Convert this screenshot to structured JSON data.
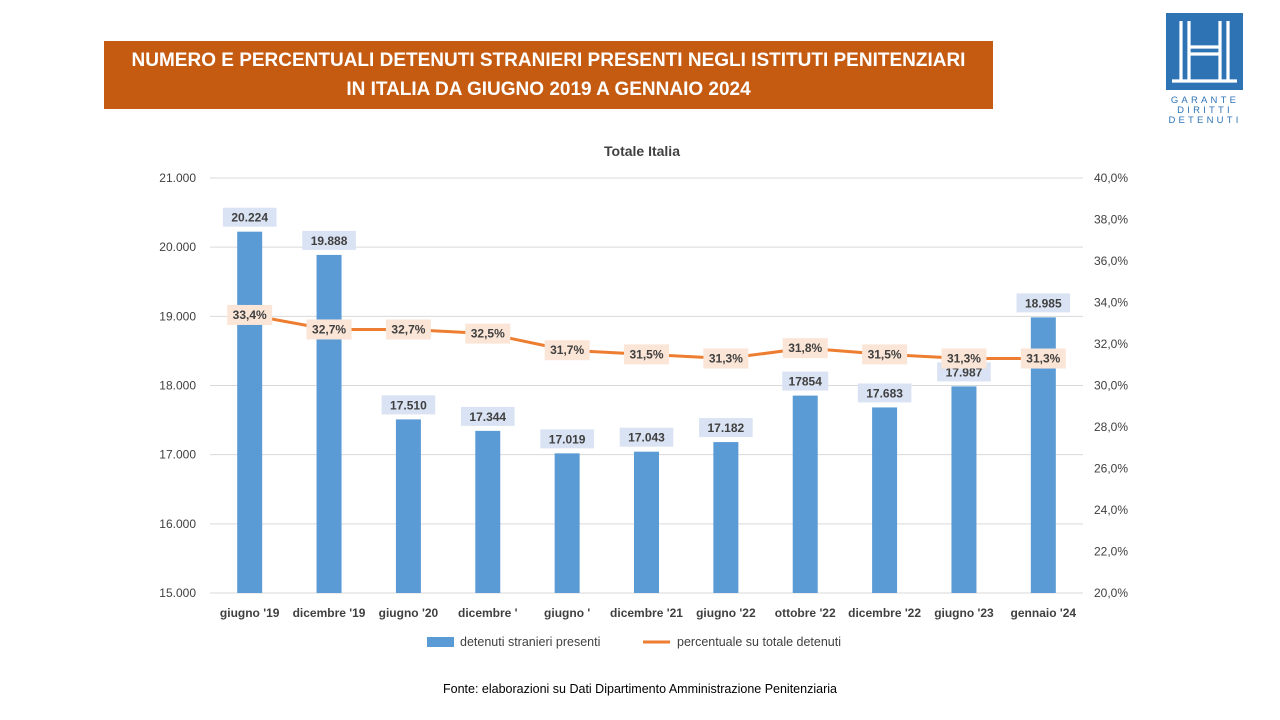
{
  "header": {
    "title_line1": "NUMERO E PERCENTUALI DETENUTI STRANIERI PRESENTI NEGLI ISTITUTI PENITENZIARI",
    "title_line2": "IN ITALIA DA GIUGNO 2019 A GENNAIO 2024"
  },
  "logo": {
    "lines": [
      "GARANTE",
      "DIRITTI",
      "DETENUTI"
    ]
  },
  "source": "Fonte: elaborazioni su Dati Dipartimento  Amministrazione Penitenziaria",
  "colors": {
    "banner": "#c55a11",
    "bars": "#5b9bd5",
    "line": "#ed7d31",
    "logo": "#2e74b5"
  },
  "chart_data": {
    "type": "bar",
    "title": "Totale Italia",
    "categories": [
      "giugno '19",
      "dicembre '19",
      "giugno '20",
      "dicembre '",
      "giugno '",
      "dicembre '21",
      "giugno '22",
      "ottobre '22",
      "dicembre '22",
      "giugno '23",
      "gennaio '24"
    ],
    "series": [
      {
        "name": "detenuti stranieri presenti",
        "type": "bar",
        "axis": "left",
        "values": [
          20224,
          19888,
          17510,
          17344,
          17019,
          17043,
          17182,
          17854,
          17683,
          17987,
          18985
        ],
        "labels": [
          "20.224",
          "19.888",
          "17.510",
          "17.344",
          "17.019",
          "17.043",
          "17.182",
          "17854",
          "17.683",
          "17.987",
          "18.985"
        ]
      },
      {
        "name": "percentuale su totale detenuti",
        "type": "line",
        "axis": "right",
        "values": [
          33.4,
          32.7,
          32.7,
          32.5,
          31.7,
          31.5,
          31.3,
          31.8,
          31.5,
          31.3,
          31.3
        ],
        "labels": [
          "33,4%",
          "32,7%",
          "32,7%",
          "32,5%",
          "31,7%",
          "31,5%",
          "31,3%",
          "31,8%",
          "31,5%",
          "31,3%",
          "31,3%"
        ]
      }
    ],
    "y_left": {
      "min": 15000,
      "max": 21000,
      "ticks": [
        "15.000",
        "16.000",
        "17.000",
        "18.000",
        "19.000",
        "20.000",
        "21.000"
      ]
    },
    "y_right": {
      "min": 20,
      "max": 40,
      "ticks": [
        "20,0%",
        "22,0%",
        "24,0%",
        "26,0%",
        "28,0%",
        "30,0%",
        "32,0%",
        "34,0%",
        "36,0%",
        "38,0%",
        "40,0%"
      ]
    },
    "grid": true,
    "legend": "bottom"
  }
}
